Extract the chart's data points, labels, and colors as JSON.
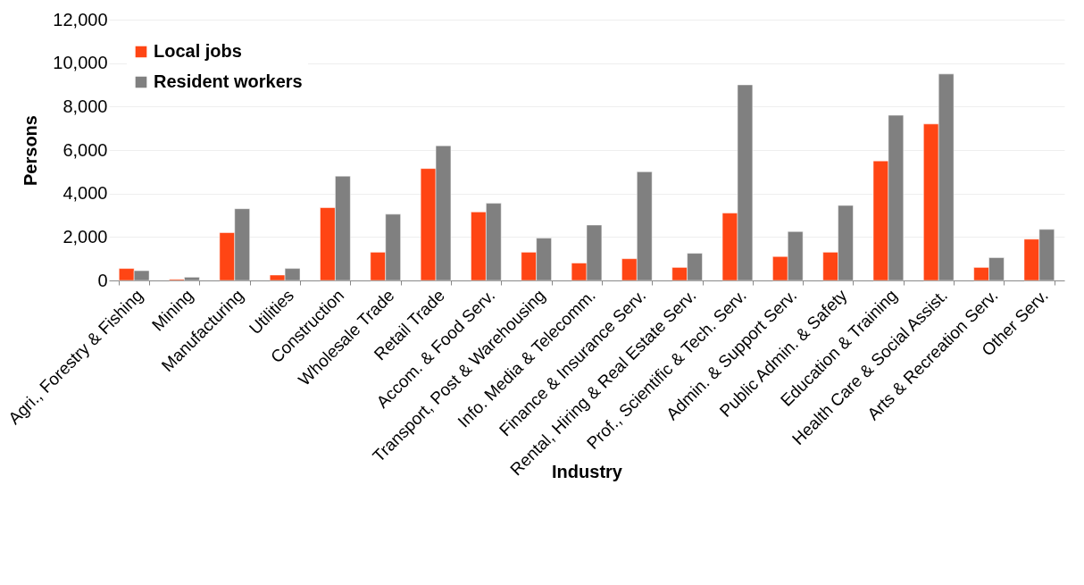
{
  "chart_data": {
    "type": "bar",
    "xlabel": "Industry",
    "ylabel": "Persons",
    "categories": [
      "Agri., Forestry & Fishing",
      "Mining",
      "Manufacturing",
      "Utilities",
      "Construction",
      "Wholesale Trade",
      "Retail Trade",
      "Accom. & Food Serv.",
      "Transport, Post & Warehousing",
      "Info. Media & Telecomm.",
      "Finance & Insurance Serv.",
      "Rental, Hiring & Real Estate Serv.",
      "Prof., Scientific & Tech. Serv.",
      "Admin. & Support Serv.",
      "Public Admin. & Safety",
      "Education & Training",
      "Health Care & Social Assist.",
      "Arts & Recreation Serv.",
      "Other Serv."
    ],
    "series": [
      {
        "name": "Local jobs",
        "color": "#ff4514",
        "values": [
          550,
          50,
          2200,
          250,
          3350,
          1300,
          5150,
          3150,
          1300,
          800,
          1000,
          600,
          3100,
          1100,
          1300,
          5500,
          7200,
          600,
          1900
        ]
      },
      {
        "name": "Resident workers",
        "color": "#808080",
        "values": [
          450,
          150,
          3300,
          550,
          4800,
          3050,
          6200,
          3550,
          1950,
          2550,
          5000,
          1250,
          9000,
          2250,
          3450,
          7600,
          9500,
          1050,
          2350
        ]
      }
    ],
    "ylim": [
      0,
      12000
    ],
    "yticks": [
      {
        "value": 0,
        "label": "0"
      },
      {
        "value": 2000,
        "label": "2,000"
      },
      {
        "value": 4000,
        "label": "4,000"
      },
      {
        "value": 6000,
        "label": "6,000"
      },
      {
        "value": 8000,
        "label": "8,000"
      },
      {
        "value": 10000,
        "label": "10,000"
      },
      {
        "value": 12000,
        "label": "12,000"
      }
    ],
    "grid": "y",
    "legend": "top left"
  }
}
